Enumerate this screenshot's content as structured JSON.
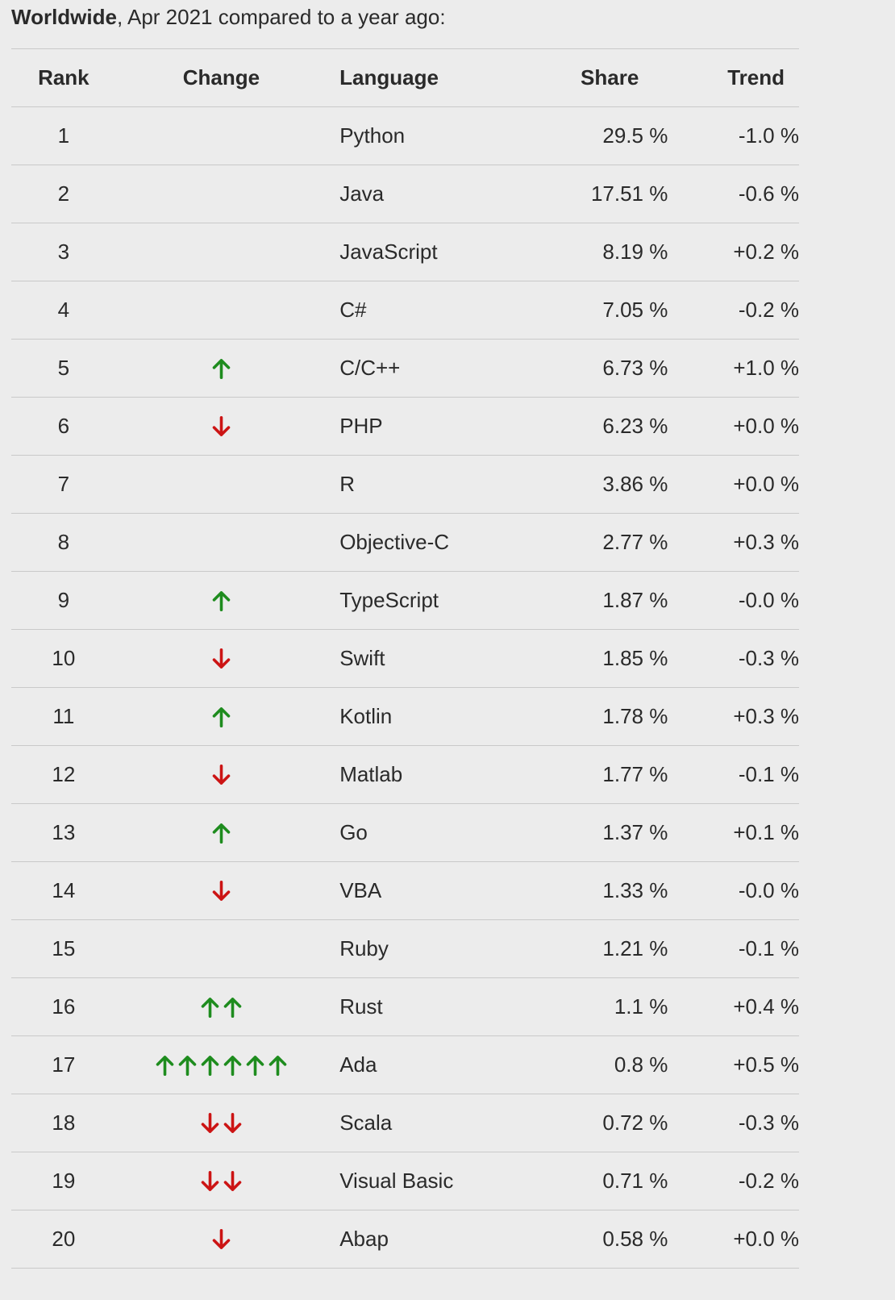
{
  "caption": {
    "bold": "Worldwide",
    "rest": ", Apr 2021 compared to a year ago:"
  },
  "headers": {
    "rank": "Rank",
    "change": "Change",
    "language": "Language",
    "share": "Share",
    "trend": "Trend"
  },
  "colors": {
    "up": "#1e8c1e",
    "down": "#cc1414"
  },
  "rows": [
    {
      "rank": "1",
      "change": {
        "dir": "",
        "count": 0
      },
      "language": "Python",
      "share": "29.5 %",
      "trend": "-1.0 %"
    },
    {
      "rank": "2",
      "change": {
        "dir": "",
        "count": 0
      },
      "language": "Java",
      "share": "17.51 %",
      "trend": "-0.6 %"
    },
    {
      "rank": "3",
      "change": {
        "dir": "",
        "count": 0
      },
      "language": "JavaScript",
      "share": "8.19 %",
      "trend": "+0.2 %"
    },
    {
      "rank": "4",
      "change": {
        "dir": "",
        "count": 0
      },
      "language": "C#",
      "share": "7.05 %",
      "trend": "-0.2 %"
    },
    {
      "rank": "5",
      "change": {
        "dir": "up",
        "count": 1
      },
      "language": "C/C++",
      "share": "6.73 %",
      "trend": "+1.0 %"
    },
    {
      "rank": "6",
      "change": {
        "dir": "down",
        "count": 1
      },
      "language": "PHP",
      "share": "6.23 %",
      "trend": "+0.0 %"
    },
    {
      "rank": "7",
      "change": {
        "dir": "",
        "count": 0
      },
      "language": "R",
      "share": "3.86 %",
      "trend": "+0.0 %"
    },
    {
      "rank": "8",
      "change": {
        "dir": "",
        "count": 0
      },
      "language": "Objective-C",
      "share": "2.77 %",
      "trend": "+0.3 %"
    },
    {
      "rank": "9",
      "change": {
        "dir": "up",
        "count": 1
      },
      "language": "TypeScript",
      "share": "1.87 %",
      "trend": "-0.0 %"
    },
    {
      "rank": "10",
      "change": {
        "dir": "down",
        "count": 1
      },
      "language": "Swift",
      "share": "1.85 %",
      "trend": "-0.3 %"
    },
    {
      "rank": "11",
      "change": {
        "dir": "up",
        "count": 1
      },
      "language": "Kotlin",
      "share": "1.78 %",
      "trend": "+0.3 %"
    },
    {
      "rank": "12",
      "change": {
        "dir": "down",
        "count": 1
      },
      "language": "Matlab",
      "share": "1.77 %",
      "trend": "-0.1 %"
    },
    {
      "rank": "13",
      "change": {
        "dir": "up",
        "count": 1
      },
      "language": "Go",
      "share": "1.37 %",
      "trend": "+0.1 %"
    },
    {
      "rank": "14",
      "change": {
        "dir": "down",
        "count": 1
      },
      "language": "VBA",
      "share": "1.33 %",
      "trend": "-0.0 %"
    },
    {
      "rank": "15",
      "change": {
        "dir": "",
        "count": 0
      },
      "language": "Ruby",
      "share": "1.21 %",
      "trend": "-0.1 %"
    },
    {
      "rank": "16",
      "change": {
        "dir": "up",
        "count": 2
      },
      "language": "Rust",
      "share": "1.1 %",
      "trend": "+0.4 %"
    },
    {
      "rank": "17",
      "change": {
        "dir": "up",
        "count": 6
      },
      "language": "Ada",
      "share": "0.8 %",
      "trend": "+0.5 %"
    },
    {
      "rank": "18",
      "change": {
        "dir": "down",
        "count": 2
      },
      "language": "Scala",
      "share": "0.72 %",
      "trend": "-0.3 %"
    },
    {
      "rank": "19",
      "change": {
        "dir": "down",
        "count": 2
      },
      "language": "Visual Basic",
      "share": "0.71 %",
      "trend": "-0.2 %"
    },
    {
      "rank": "20",
      "change": {
        "dir": "down",
        "count": 1
      },
      "language": "Abap",
      "share": "0.58 %",
      "trend": "+0.0 %"
    }
  ]
}
